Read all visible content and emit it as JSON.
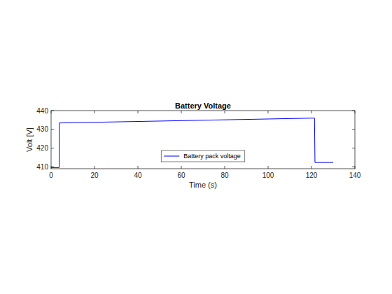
{
  "chart_data": {
    "type": "line",
    "title": "Battery Voltage",
    "x_label": "Time (s)",
    "y_label": "Volt [V]",
    "x": [
      0,
      3.7,
      3.8,
      121.4,
      121.6,
      130
    ],
    "series": [
      {
        "name": "Battery pack voltage",
        "color": "#0000ff",
        "values": [
          409.6,
          409.6,
          433.4,
          436.0,
          412.3,
          412.3
        ]
      }
    ],
    "xlim": [
      0,
      140
    ],
    "ylim": [
      409,
      440
    ],
    "xticks": [
      0,
      20,
      40,
      60,
      80,
      100,
      120,
      140
    ],
    "yticks": [
      410,
      420,
      430,
      440
    ],
    "legend": "south"
  }
}
